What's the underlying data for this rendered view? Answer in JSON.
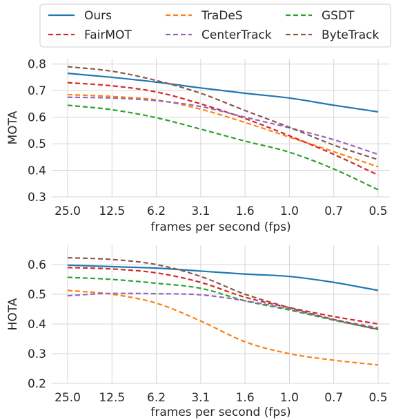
{
  "legend": {
    "entries": [
      {
        "name": "Ours",
        "color": "#1f77b4",
        "style": "solid"
      },
      {
        "name": "TraDeS",
        "color": "#ff7f0e",
        "style": "dashed"
      },
      {
        "name": "GSDT",
        "color": "#2ca02c",
        "style": "dashed"
      },
      {
        "name": "FairMOT",
        "color": "#d62728",
        "style": "dashed"
      },
      {
        "name": "CenterTrack",
        "color": "#9467bd",
        "style": "dashed"
      },
      {
        "name": "ByteTrack",
        "color": "#8c564b",
        "style": "dashed"
      }
    ],
    "placement": "top-center",
    "columns": 3
  },
  "chart_data": [
    {
      "type": "line",
      "x": [
        "25.0",
        "12.5",
        "6.2",
        "3.1",
        "1.6",
        "1.0",
        "0.7",
        "0.5"
      ],
      "xlabel": "frames per second (fps)",
      "ylabel": "MOTA",
      "ylim": [
        0.3,
        0.82
      ],
      "yticks": [
        "0.3",
        "0.4",
        "0.5",
        "0.6",
        "0.7",
        "0.8"
      ],
      "grid": true,
      "series": [
        {
          "name": "Ours",
          "values": [
            0.765,
            0.75,
            0.732,
            0.71,
            0.69,
            0.672,
            0.645,
            0.62
          ]
        },
        {
          "name": "TraDeS",
          "values": [
            0.685,
            0.678,
            0.665,
            0.63,
            0.58,
            0.525,
            0.47,
            0.413
          ]
        },
        {
          "name": "GSDT",
          "values": [
            0.645,
            0.628,
            0.598,
            0.555,
            0.51,
            0.468,
            0.405,
            0.327
          ]
        },
        {
          "name": "FairMOT",
          "values": [
            0.73,
            0.718,
            0.695,
            0.65,
            0.595,
            0.53,
            0.46,
            0.382
          ]
        },
        {
          "name": "CenterTrack",
          "values": [
            0.675,
            0.672,
            0.662,
            0.64,
            0.6,
            0.56,
            0.515,
            0.46
          ]
        },
        {
          "name": "ByteTrack",
          "values": [
            0.79,
            0.773,
            0.738,
            0.69,
            0.625,
            0.562,
            0.495,
            0.44
          ]
        }
      ]
    },
    {
      "type": "line",
      "x": [
        "25.0",
        "12.5",
        "6.2",
        "3.1",
        "1.6",
        "1.0",
        "0.7",
        "0.5"
      ],
      "xlabel": "frames per second (fps)",
      "ylabel": "HOTA",
      "ylim": [
        0.2,
        0.665
      ],
      "yticks": [
        "0.2",
        "0.3",
        "0.4",
        "0.5",
        "0.6"
      ],
      "grid": true,
      "series": [
        {
          "name": "Ours",
          "values": [
            0.598,
            0.593,
            0.588,
            0.578,
            0.568,
            0.56,
            0.54,
            0.513
          ]
        },
        {
          "name": "TraDeS",
          "values": [
            0.513,
            0.5,
            0.47,
            0.41,
            0.34,
            0.3,
            0.278,
            0.262
          ]
        },
        {
          "name": "GSDT",
          "values": [
            0.557,
            0.55,
            0.537,
            0.52,
            0.478,
            0.447,
            0.413,
            0.382
          ]
        },
        {
          "name": "FairMOT",
          "values": [
            0.59,
            0.585,
            0.572,
            0.54,
            0.49,
            0.455,
            0.425,
            0.4
          ]
        },
        {
          "name": "CenterTrack",
          "values": [
            0.495,
            0.503,
            0.502,
            0.498,
            0.478,
            0.45,
            0.415,
            0.387
          ]
        },
        {
          "name": "ByteTrack",
          "values": [
            0.623,
            0.617,
            0.6,
            0.56,
            0.5,
            0.455,
            0.415,
            0.381
          ]
        }
      ]
    }
  ]
}
